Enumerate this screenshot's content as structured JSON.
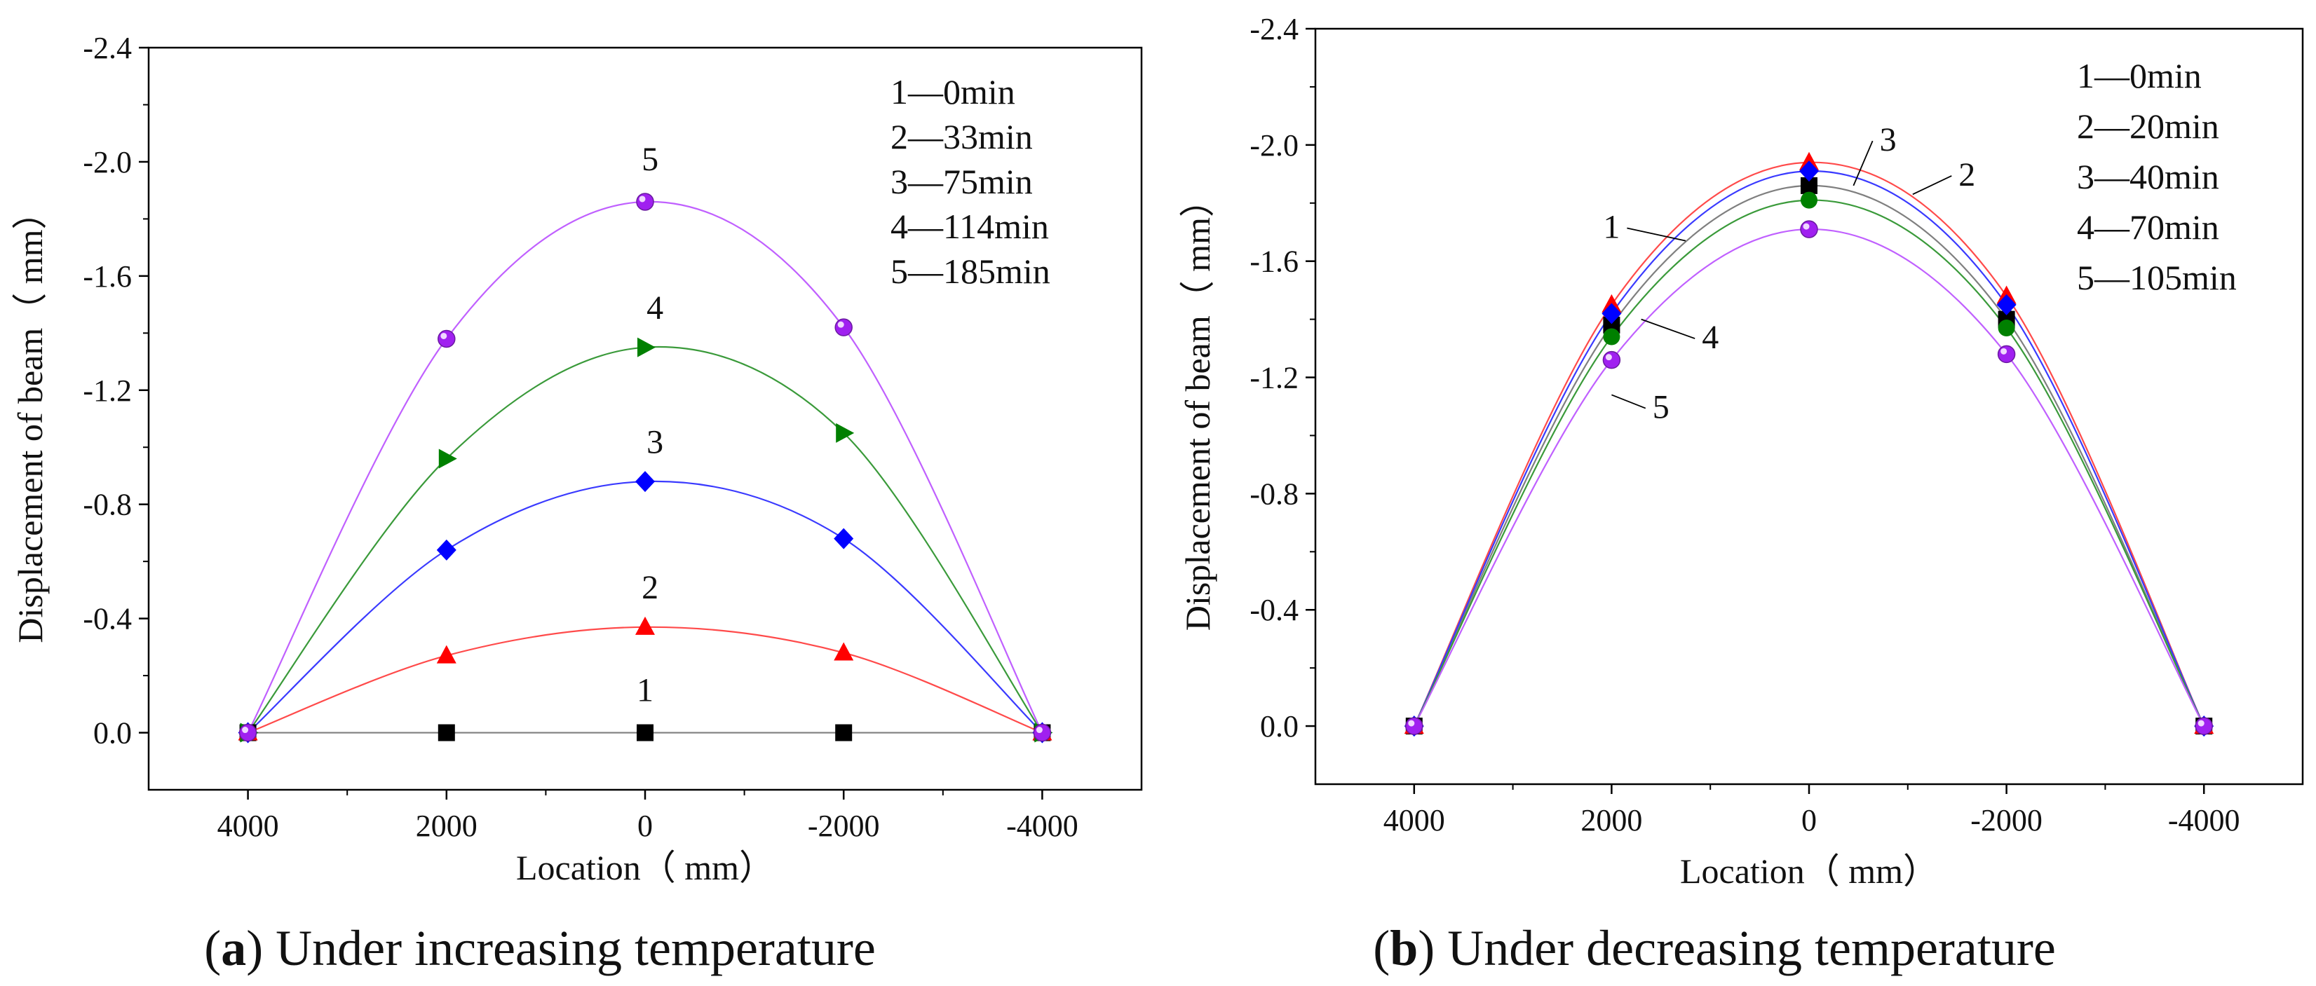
{
  "colors": {
    "1": "#000000",
    "2": "#ff0000",
    "3": "#0000ff",
    "4": "#008000",
    "5": "#a020f0",
    "curve_1": "#7f7f7f",
    "curve_2": "#ff4a4a",
    "curve_3": "#3a3aff",
    "curve_4": "#3a9a3a",
    "curve_5": "#c060ff"
  },
  "chart_data": [
    {
      "type": "line",
      "caption": {
        "letter": "a",
        "text": " Under increasing temperature"
      },
      "xlabel": "Location（ mm）",
      "ylabel": "Displacement of beam（ mm）",
      "xlim": [
        5000,
        -5000
      ],
      "ylim": [
        0.2,
        -2.4
      ],
      "xticks": [
        "4000",
        "2000",
        "0",
        "-2000",
        "-4000"
      ],
      "xtick_values": [
        4000,
        2000,
        0,
        -2000,
        -4000
      ],
      "yticks": [
        "-2.4",
        "-2.0",
        "-1.6",
        "-1.2",
        "-0.8",
        "-0.4",
        "0.0"
      ],
      "ytick_values": [
        -2.4,
        -2.0,
        -1.6,
        -1.2,
        -0.8,
        -0.4,
        0.0
      ],
      "legend": [
        "1—0min",
        "2—33min",
        "3—75min",
        "4—114min",
        "5—185min"
      ],
      "legend_position": "top-right",
      "x": [
        4000,
        2000,
        0,
        -2000,
        -4000
      ],
      "series": [
        {
          "id": "1",
          "marker": "square",
          "values": [
            0.0,
            0.0,
            0.0,
            0.0,
            0.0
          ],
          "label": "1",
          "label_at": [
            0,
            -0.11
          ]
        },
        {
          "id": "2",
          "marker": "triangle",
          "values": [
            0.0,
            -0.27,
            -0.37,
            -0.28,
            0.0
          ],
          "label": "2",
          "label_at": [
            -50,
            -0.47
          ]
        },
        {
          "id": "3",
          "marker": "diamond",
          "values": [
            0.0,
            -0.64,
            -0.88,
            -0.68,
            0.0
          ],
          "label": "3",
          "label_at": [
            -100,
            -0.98
          ]
        },
        {
          "id": "4",
          "marker": "triangle-right",
          "values": [
            0.0,
            -0.96,
            -1.35,
            -1.05,
            0.0
          ],
          "label": "4",
          "label_at": [
            -100,
            -1.45
          ]
        },
        {
          "id": "5",
          "marker": "sphere",
          "values": [
            0.0,
            -1.38,
            -1.86,
            -1.42,
            0.0
          ],
          "label": "5",
          "label_at": [
            -50,
            -1.97
          ]
        }
      ]
    },
    {
      "type": "line",
      "caption": {
        "letter": "b",
        "text": " Under decreasing temperature"
      },
      "xlabel": "Location（ mm）",
      "ylabel": "Displacement of beam（ mm）",
      "xlim": [
        5000,
        -5000
      ],
      "ylim": [
        0.2,
        -2.4
      ],
      "xticks": [
        "4000",
        "2000",
        "0",
        "-2000",
        "-4000"
      ],
      "xtick_values": [
        4000,
        2000,
        0,
        -2000,
        -4000
      ],
      "yticks": [
        "-2.4",
        "-2.0",
        "-1.6",
        "-1.2",
        "-0.8",
        "-0.4",
        "0.0"
      ],
      "ytick_values": [
        -2.4,
        -2.0,
        -1.6,
        -1.2,
        -0.8,
        -0.4,
        0.0
      ],
      "legend": [
        "1—0min",
        "2—20min",
        "3—40min",
        "4—70min",
        "5—105min"
      ],
      "legend_position": "top-right",
      "x": [
        4000,
        2000,
        0,
        -2000,
        -4000
      ],
      "series": [
        {
          "id": "1",
          "marker": "square",
          "values": [
            0.0,
            -1.38,
            -1.86,
            -1.4,
            0.0
          ],
          "label": "1",
          "label_at": [
            2000,
            -1.68
          ],
          "leader_to": [
            1250,
            -1.67
          ]
        },
        {
          "id": "2",
          "marker": "triangle",
          "values": [
            0.0,
            -1.45,
            -1.94,
            -1.48,
            0.0
          ],
          "label": "2",
          "label_at": [
            -1600,
            -1.86
          ],
          "leader_to": [
            -1050,
            -1.83
          ]
        },
        {
          "id": "3",
          "marker": "diamond",
          "values": [
            0.0,
            -1.42,
            -1.91,
            -1.45,
            0.0
          ],
          "label": "3",
          "label_at": [
            -800,
            -1.98
          ],
          "leader_to": [
            -450,
            -1.86
          ]
        },
        {
          "id": "4",
          "marker": "circle",
          "values": [
            0.0,
            -1.34,
            -1.81,
            -1.37,
            0.0
          ],
          "label": "4",
          "label_at": [
            1000,
            -1.3
          ],
          "leader_to": [
            1700,
            -1.4
          ]
        },
        {
          "id": "5",
          "marker": "sphere",
          "values": [
            0.0,
            -1.26,
            -1.71,
            -1.28,
            0.0
          ],
          "label": "5",
          "label_at": [
            1500,
            -1.06
          ],
          "leader_to": [
            2000,
            -1.14
          ]
        }
      ]
    }
  ]
}
